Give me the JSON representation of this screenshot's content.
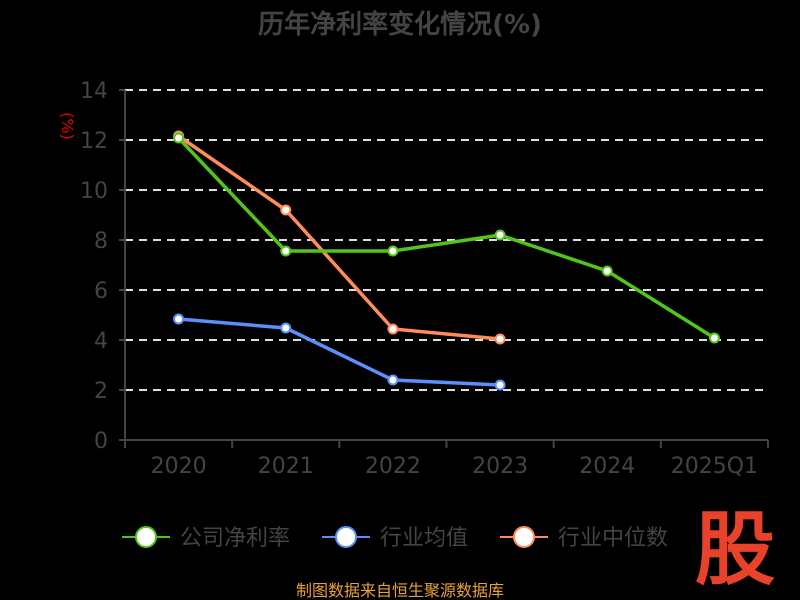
{
  "chart_data": {
    "type": "line",
    "title": "历年净利率变化情况(%)",
    "ylabel": "(%)",
    "xlabel": "",
    "ylim": [
      0,
      14
    ],
    "yticks": [
      0,
      2,
      4,
      6,
      8,
      10,
      12,
      14
    ],
    "categories": [
      "2020",
      "2021",
      "2022",
      "2023",
      "2024",
      "2025Q1"
    ],
    "grid": true,
    "legend_position": "bottom",
    "series": [
      {
        "name": "公司净利率",
        "color": "#52c41a",
        "values": [
          12.08,
          7.56,
          7.56,
          8.2,
          6.76,
          4.08
        ]
      },
      {
        "name": "行业均值",
        "color": "#5b8ff9",
        "values": [
          4.84,
          4.48,
          2.4,
          2.2,
          null,
          null
        ]
      },
      {
        "name": "行业中位数",
        "color": "#ff8c5a",
        "values": [
          12.16,
          9.2,
          4.44,
          4.04,
          null,
          null
        ]
      }
    ]
  },
  "source": "制图数据来自恒生聚源数据库",
  "watermark": "股"
}
